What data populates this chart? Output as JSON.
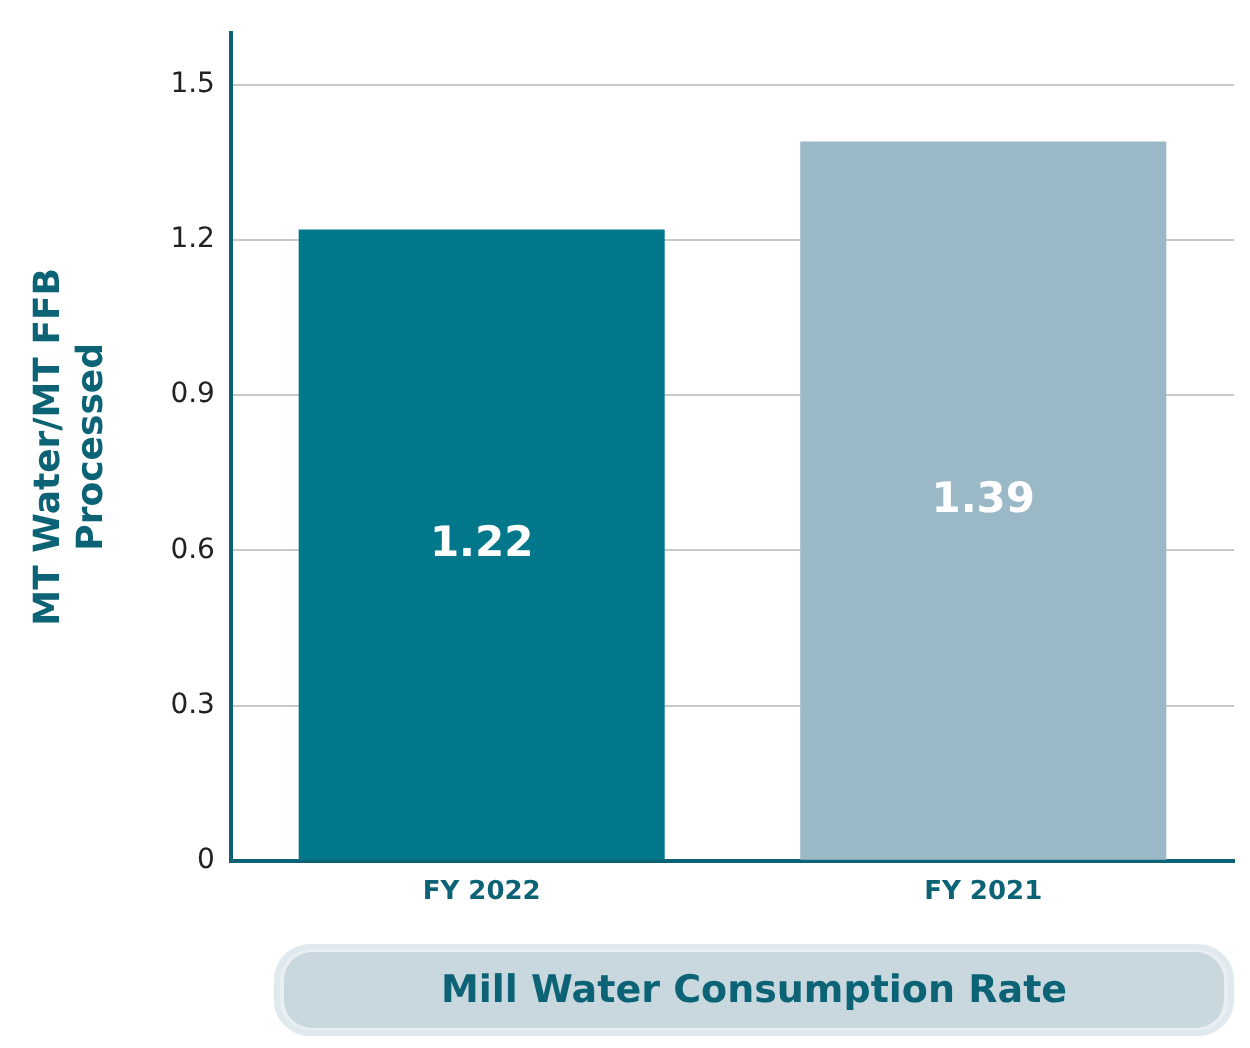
{
  "chart_data": {
    "type": "bar",
    "title": "Mill Water Consumption Rate",
    "ylabel": "MT Water/MT FFB Processed",
    "categories": [
      "FY 2022",
      "FY 2021"
    ],
    "values": [
      1.22,
      1.39
    ],
    "colors": [
      "#00778b",
      "#9ab8c5"
    ],
    "ylim": [
      0,
      1.6
    ],
    "yticks": [
      0,
      0.3,
      0.6,
      0.9,
      1.2,
      1.5
    ],
    "grid": "y",
    "data_labels": true
  }
}
